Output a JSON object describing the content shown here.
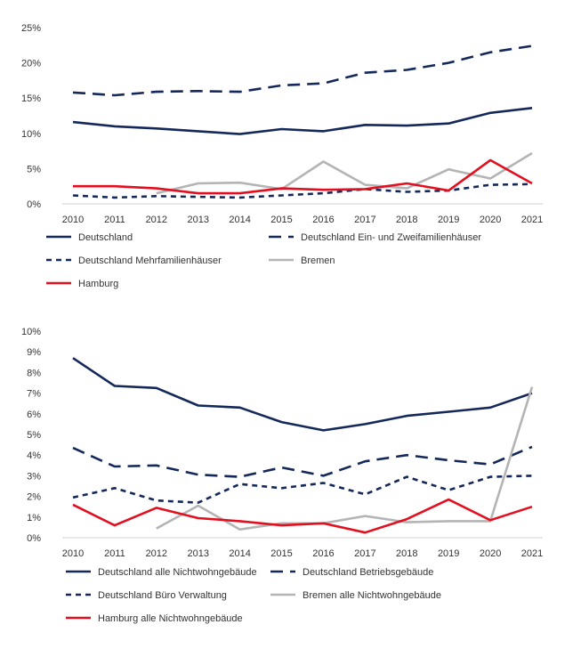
{
  "chart_data": [
    {
      "type": "line",
      "x": [
        "2010",
        "2011",
        "2012",
        "2013",
        "2014",
        "2015",
        "2016",
        "2017",
        "2018",
        "2019",
        "2020",
        "2021"
      ],
      "ylim": [
        0,
        25
      ],
      "yticks": [
        "0%",
        "5%",
        "10%",
        "15%",
        "20%",
        "25%"
      ],
      "ytick_values": [
        0,
        5,
        10,
        15,
        20,
        25
      ],
      "grid": false,
      "legend_position": "bottom",
      "series": [
        {
          "name": "Deutschland",
          "color": "#14285a",
          "dash": "solid",
          "values": [
            11.6,
            11.0,
            10.7,
            10.3,
            9.9,
            10.6,
            10.3,
            11.2,
            11.1,
            11.4,
            12.9,
            13.6
          ]
        },
        {
          "name": "Deutschland Ein- und Zweifamilienhäuser",
          "color": "#14285a",
          "dash": "long",
          "values": [
            15.8,
            15.4,
            15.9,
            16.0,
            15.9,
            16.8,
            17.1,
            18.6,
            19.0,
            20.0,
            21.5,
            22.4
          ]
        },
        {
          "name": "Deutschland Mehrfamilienhäuser",
          "color": "#14285a",
          "dash": "short",
          "values": [
            1.2,
            0.9,
            1.1,
            1.0,
            0.9,
            1.2,
            1.5,
            2.1,
            1.7,
            1.9,
            2.7,
            2.8
          ]
        },
        {
          "name": "Bremen",
          "color": "#b4b4b4",
          "dash": "solid",
          "values": [
            null,
            null,
            1.5,
            2.9,
            3.0,
            2.1,
            6.0,
            2.7,
            2.2,
            4.9,
            3.6,
            7.2
          ]
        },
        {
          "name": "Hamburg",
          "color": "#e30f1e",
          "dash": "solid",
          "values": [
            2.5,
            2.5,
            2.2,
            1.5,
            1.5,
            2.2,
            2.0,
            2.1,
            2.9,
            1.9,
            6.2,
            2.9
          ]
        }
      ]
    },
    {
      "type": "line",
      "x": [
        "2010",
        "2011",
        "2012",
        "2013",
        "2014",
        "2015",
        "2016",
        "2017",
        "2018",
        "2019",
        "2020",
        "2021"
      ],
      "ylim": [
        0,
        10
      ],
      "yticks": [
        "0%",
        "1%",
        "2%",
        "3%",
        "4%",
        "5%",
        "6%",
        "7%",
        "8%",
        "9%",
        "10%"
      ],
      "ytick_values": [
        0,
        1,
        2,
        3,
        4,
        5,
        6,
        7,
        8,
        9,
        10
      ],
      "grid": false,
      "legend_position": "bottom",
      "series": [
        {
          "name": "Deutschland alle Nichtwohngebäude",
          "color": "#14285a",
          "dash": "solid",
          "values": [
            8.7,
            7.35,
            7.25,
            6.4,
            6.3,
            5.6,
            5.2,
            5.5,
            5.9,
            6.1,
            6.3,
            7.0
          ]
        },
        {
          "name": "Deutschland Betriebsgebäude",
          "color": "#14285a",
          "dash": "long",
          "values": [
            4.35,
            3.45,
            3.5,
            3.05,
            2.95,
            3.4,
            3.0,
            3.7,
            4.0,
            3.75,
            3.55,
            4.4
          ]
        },
        {
          "name": "Deutschland Büro Verwaltung",
          "color": "#14285a",
          "dash": "short",
          "values": [
            1.95,
            2.4,
            1.8,
            1.7,
            2.6,
            2.4,
            2.65,
            2.1,
            2.95,
            2.3,
            2.95,
            3.0
          ]
        },
        {
          "name": "Bremen alle Nichtwohngebäude",
          "color": "#b4b4b4",
          "dash": "solid",
          "values": [
            null,
            null,
            0.45,
            1.55,
            0.4,
            0.7,
            0.7,
            1.05,
            0.75,
            0.8,
            0.8,
            7.3
          ]
        },
        {
          "name": "Hamburg alle Nichtwohngebäude",
          "color": "#e30f1e",
          "dash": "solid",
          "values": [
            1.6,
            0.6,
            1.45,
            0.95,
            0.8,
            0.6,
            0.7,
            0.25,
            0.9,
            1.85,
            0.85,
            1.5
          ]
        }
      ]
    }
  ]
}
